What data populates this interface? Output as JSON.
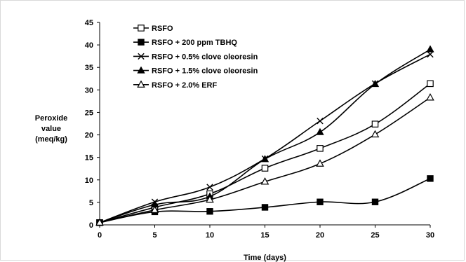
{
  "chart_data": {
    "type": "line",
    "title": "",
    "xlabel": "Time (days)",
    "ylabel": [
      "Peroxide",
      "value",
      "(meq/kg)"
    ],
    "x": [
      0,
      5,
      10,
      15,
      20,
      25,
      30
    ],
    "xlim": [
      0,
      30
    ],
    "ylim": [
      0,
      45
    ],
    "xticks": [
      "0",
      "5",
      "10",
      "15",
      "20",
      "25",
      "30"
    ],
    "yticks": [
      "0",
      "5",
      "10",
      "15",
      "20",
      "25",
      "30",
      "35",
      "40",
      "45"
    ],
    "grid": false,
    "legend_position": "top-left",
    "series": [
      {
        "name": "RSFO",
        "marker": "square-open",
        "values": [
          0.5,
          3.9,
          6.9,
          12.6,
          17.0,
          22.4,
          31.4
        ]
      },
      {
        "name": "RSFO + 200 ppm TBHQ",
        "marker": "square-filled",
        "values": [
          0.5,
          2.9,
          3.0,
          3.9,
          5.1,
          5.1,
          10.3
        ]
      },
      {
        "name": "RSFO + 0.5% clove oleoresin",
        "marker": "x",
        "values": [
          0.5,
          5.1,
          8.4,
          14.7,
          23.1,
          31.4,
          37.9
        ]
      },
      {
        "name": "RSFO + 1.5% clove oleoresin",
        "marker": "triangle-filled",
        "values": [
          0.5,
          4.5,
          6.3,
          14.6,
          20.6,
          31.3,
          39.0
        ]
      },
      {
        "name": "RSFO + 2.0% ERF",
        "marker": "triangle-open",
        "values": [
          0.5,
          3.3,
          5.6,
          9.6,
          13.6,
          20.1,
          28.3
        ]
      }
    ]
  }
}
